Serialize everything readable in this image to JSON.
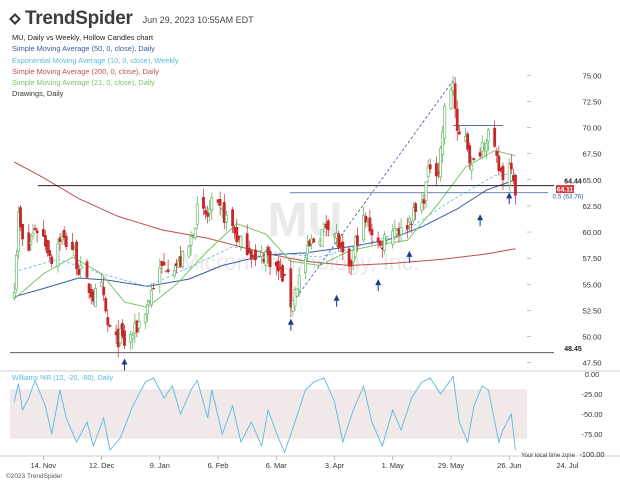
{
  "header": {
    "brand": "TrendSpider",
    "timestamp": "Jun 29, 2023 10:55AM EDT"
  },
  "legend": {
    "title": "MU, Daily vs Weekly, Hollow Candles chart",
    "items": [
      {
        "label": "Simple Moving Average (50, 0, close), Daily",
        "color": "#3a5ba0"
      },
      {
        "label": "Exponential Moving Average (10, 0, close), Weekly",
        "color": "#5bb8e0"
      },
      {
        "label": "Simple Moving Average (200, 0, close), Daily",
        "color": "#c0504d"
      },
      {
        "label": "Simple Moving Average (21, 0, close), Daily",
        "color": "#7ac36a"
      },
      {
        "label": "Drawings, Daily",
        "color": "#333333"
      }
    ]
  },
  "watermark": {
    "ticker": "MU",
    "name": "Micron Technology, Inc."
  },
  "chart_data": [
    {
      "type": "candlestick",
      "title": "MU, Daily vs Weekly, Hollow Candles chart",
      "y_axis": {
        "ticks": [
          47.5,
          50.0,
          52.5,
          55.0,
          57.5,
          60.0,
          62.5,
          65.0,
          67.5,
          70.0,
          72.5,
          75.0
        ],
        "tick_labels": [
          "47.50",
          "50.00",
          "52.50",
          "55.00",
          "57.50",
          "60.00",
          "62.50",
          "65.00",
          "67.50",
          "70.00",
          "72.50",
          "75.00"
        ],
        "range": [
          46.8,
          77.8
        ]
      },
      "x_axis": {
        "ticks": [
          "14. Nov",
          "12. Dec",
          "9. Jan",
          "6. Feb",
          "6. Mar",
          "3. Apr",
          "1. May",
          "29. May",
          "26. Jun",
          "24. Jul"
        ]
      },
      "price_labels": [
        {
          "value": 64.44,
          "label": "64.44",
          "color": "#222222"
        },
        {
          "value": 64.11,
          "label": "64.11",
          "color": "#d33b3b"
        },
        {
          "value": 48.45,
          "label": "48.45",
          "color": "#222222"
        }
      ],
      "fib_label": {
        "value": 63.76,
        "label": "0.5 (63.76)"
      },
      "last_price": 64.11,
      "horizontal_levels": [
        64.44,
        48.45,
        63.76
      ],
      "resistance_top": 70.2,
      "close_path": [
        [
          "2022-10-31",
          55.0
        ],
        [
          "2022-11-02",
          61.5
        ],
        [
          "2022-11-04",
          59.0
        ],
        [
          "2022-11-07",
          58.3
        ],
        [
          "2022-11-10",
          60.5
        ],
        [
          "2022-11-14",
          59.5
        ],
        [
          "2022-11-18",
          57.5
        ],
        [
          "2022-11-22",
          59.5
        ],
        [
          "2022-11-28",
          58.5
        ],
        [
          "2022-12-01",
          56.5
        ],
        [
          "2022-12-05",
          55.0
        ],
        [
          "2022-12-08",
          53.8
        ],
        [
          "2022-12-12",
          54.5
        ],
        [
          "2022-12-15",
          51.0
        ],
        [
          "2022-12-19",
          49.5
        ],
        [
          "2022-12-21",
          50.0
        ],
        [
          "2022-12-23",
          49.3
        ],
        [
          "2022-12-28",
          50.5
        ],
        [
          "2023-01-03",
          53.0
        ],
        [
          "2023-01-06",
          55.0
        ],
        [
          "2023-01-10",
          56.5
        ],
        [
          "2023-01-13",
          57.0
        ],
        [
          "2023-01-18",
          56.8
        ],
        [
          "2023-01-23",
          58.5
        ],
        [
          "2023-01-27",
          62.0
        ],
        [
          "2023-02-01",
          61.5
        ],
        [
          "2023-02-03",
          62.5
        ],
        [
          "2023-02-08",
          61.8
        ],
        [
          "2023-02-13",
          60.5
        ],
        [
          "2023-02-16",
          59.0
        ],
        [
          "2023-02-21",
          58.5
        ],
        [
          "2023-02-24",
          57.0
        ],
        [
          "2023-03-01",
          58.0
        ],
        [
          "2023-03-06",
          56.5
        ],
        [
          "2023-03-09",
          55.8
        ],
        [
          "2023-03-13",
          53.2
        ],
        [
          "2023-03-16",
          55.0
        ],
        [
          "2023-03-20",
          57.5
        ],
        [
          "2023-03-23",
          59.0
        ],
        [
          "2023-03-28",
          60.0
        ],
        [
          "2023-03-31",
          61.0
        ],
        [
          "2023-04-04",
          59.5
        ],
        [
          "2023-04-06",
          58.0
        ],
        [
          "2023-04-10",
          56.0
        ],
        [
          "2023-04-13",
          59.0
        ],
        [
          "2023-04-17",
          61.0
        ],
        [
          "2023-04-20",
          60.5
        ],
        [
          "2023-04-25",
          58.5
        ],
        [
          "2023-04-28",
          60.0
        ],
        [
          "2023-05-03",
          60.5
        ],
        [
          "2023-05-05",
          60.0
        ],
        [
          "2023-05-10",
          61.5
        ],
        [
          "2023-05-15",
          62.5
        ],
        [
          "2023-05-19",
          66.5
        ],
        [
          "2023-05-23",
          66.0
        ],
        [
          "2023-05-26",
          71.5
        ],
        [
          "2023-05-30",
          74.5
        ],
        [
          "2023-06-01",
          69.0
        ],
        [
          "2023-06-05",
          69.5
        ],
        [
          "2023-06-08",
          66.0
        ],
        [
          "2023-06-13",
          68.5
        ],
        [
          "2023-06-16",
          69.5
        ],
        [
          "2023-06-21",
          66.0
        ],
        [
          "2023-06-23",
          65.5
        ],
        [
          "2023-06-27",
          66.8
        ],
        [
          "2023-06-29",
          64.11
        ]
      ],
      "sma21": [
        [
          "2022-10-31",
          53.6
        ],
        [
          "2022-11-14",
          56.0
        ],
        [
          "2022-11-28",
          57.6
        ],
        [
          "2022-12-12",
          56.0
        ],
        [
          "2022-12-23",
          53.3
        ],
        [
          "2023-01-03",
          52.8
        ],
        [
          "2023-01-17",
          55.0
        ],
        [
          "2023-02-01",
          58.2
        ],
        [
          "2023-02-15",
          60.8
        ],
        [
          "2023-03-01",
          59.8
        ],
        [
          "2023-03-13",
          57.2
        ],
        [
          "2023-03-27",
          56.8
        ],
        [
          "2023-04-10",
          58.2
        ],
        [
          "2023-04-24",
          58.8
        ],
        [
          "2023-05-08",
          59.2
        ],
        [
          "2023-05-22",
          62.5
        ],
        [
          "2023-06-05",
          66.2
        ],
        [
          "2023-06-19",
          67.8
        ],
        [
          "2023-06-29",
          67.3
        ]
      ],
      "sma50": [
        [
          "2022-10-31",
          53.8
        ],
        [
          "2022-11-14",
          54.6
        ],
        [
          "2022-12-01",
          55.6
        ],
        [
          "2022-12-15",
          55.4
        ],
        [
          "2023-01-03",
          54.8
        ],
        [
          "2023-01-23",
          55.5
        ],
        [
          "2023-02-08",
          56.8
        ],
        [
          "2023-03-01",
          57.8
        ],
        [
          "2023-03-20",
          58.0
        ],
        [
          "2023-04-10",
          58.6
        ],
        [
          "2023-04-28",
          59.2
        ],
        [
          "2023-05-15",
          60.5
        ],
        [
          "2023-06-01",
          62.2
        ],
        [
          "2023-06-15",
          64.0
        ],
        [
          "2023-06-29",
          65.0
        ]
      ],
      "sma200": [
        [
          "2022-10-31",
          66.7
        ],
        [
          "2022-11-14",
          65.2
        ],
        [
          "2022-12-01",
          63.2
        ],
        [
          "2022-12-20",
          61.5
        ],
        [
          "2023-01-10",
          60.2
        ],
        [
          "2023-02-01",
          59.4
        ],
        [
          "2023-02-28",
          58.0
        ],
        [
          "2023-03-20",
          57.2
        ],
        [
          "2023-04-10",
          56.8
        ],
        [
          "2023-05-01",
          57.0
        ],
        [
          "2023-05-25",
          57.4
        ],
        [
          "2023-06-15",
          57.9
        ],
        [
          "2023-06-29",
          58.4
        ]
      ],
      "ema10_weekly": [
        [
          "2022-10-31",
          56.2
        ],
        [
          "2022-11-21",
          57.4
        ],
        [
          "2022-12-12",
          56.0
        ],
        [
          "2023-01-03",
          54.8
        ],
        [
          "2023-01-23",
          56.6
        ],
        [
          "2023-02-13",
          58.6
        ],
        [
          "2023-03-06",
          58.0
        ],
        [
          "2023-03-27",
          57.6
        ],
        [
          "2023-04-17",
          58.8
        ],
        [
          "2023-05-08",
          60.2
        ],
        [
          "2023-05-29",
          63.0
        ],
        [
          "2023-06-19",
          65.4
        ],
        [
          "2023-06-29",
          65.6
        ]
      ],
      "trendline_from": [
        "2023-03-13",
        53.0
      ],
      "trendline_to": [
        "2023-05-30",
        74.5
      ],
      "markers": [
        {
          "date": "2022-12-23",
          "value": 47.9
        },
        {
          "date": "2023-03-13",
          "value": 51.7
        },
        {
          "date": "2023-04-04",
          "value": 54.0
        },
        {
          "date": "2023-04-24",
          "value": 55.5
        },
        {
          "date": "2023-05-09",
          "value": 58.2
        },
        {
          "date": "2023-06-12",
          "value": 61.7
        },
        {
          "date": "2023-06-26",
          "value": 63.8
        }
      ]
    },
    {
      "type": "line",
      "title": "Williams %R (10, -20, -80), Daily",
      "y_axis": {
        "ticks": [
          0,
          -25,
          -50,
          -75,
          -100
        ],
        "tick_labels": [
          "0.00",
          "-25.00",
          "-50.00",
          "-75.00",
          "-100.00"
        ],
        "range": [
          -100,
          0
        ]
      },
      "bands": [
        -20,
        -80
      ],
      "values": [
        [
          "2022-10-31",
          -35
        ],
        [
          "2022-11-02",
          -12
        ],
        [
          "2022-11-04",
          -45
        ],
        [
          "2022-11-07",
          -30
        ],
        [
          "2022-11-10",
          -8
        ],
        [
          "2022-11-15",
          -40
        ],
        [
          "2022-11-18",
          -75
        ],
        [
          "2022-11-22",
          -20
        ],
        [
          "2022-11-25",
          -55
        ],
        [
          "2022-11-30",
          -85
        ],
        [
          "2022-12-05",
          -60
        ],
        [
          "2022-12-08",
          -90
        ],
        [
          "2022-12-13",
          -55
        ],
        [
          "2022-12-16",
          -95
        ],
        [
          "2022-12-21",
          -80
        ],
        [
          "2022-12-27",
          -40
        ],
        [
          "2023-01-02",
          -10
        ],
        [
          "2023-01-06",
          -5
        ],
        [
          "2023-01-11",
          -30
        ],
        [
          "2023-01-15",
          -15
        ],
        [
          "2023-01-19",
          -50
        ],
        [
          "2023-01-24",
          -20
        ],
        [
          "2023-01-27",
          -8
        ],
        [
          "2023-02-01",
          -55
        ],
        [
          "2023-02-03",
          -20
        ],
        [
          "2023-02-08",
          -75
        ],
        [
          "2023-02-13",
          -40
        ],
        [
          "2023-02-17",
          -85
        ],
        [
          "2023-02-22",
          -60
        ],
        [
          "2023-02-27",
          -90
        ],
        [
          "2023-03-02",
          -45
        ],
        [
          "2023-03-07",
          -80
        ],
        [
          "2023-03-10",
          -98
        ],
        [
          "2023-03-15",
          -60
        ],
        [
          "2023-03-20",
          -20
        ],
        [
          "2023-03-24",
          -10
        ],
        [
          "2023-03-29",
          -5
        ],
        [
          "2023-04-03",
          -35
        ],
        [
          "2023-04-07",
          -85
        ],
        [
          "2023-04-12",
          -45
        ],
        [
          "2023-04-17",
          -15
        ],
        [
          "2023-04-21",
          -60
        ],
        [
          "2023-04-26",
          -90
        ],
        [
          "2023-05-01",
          -45
        ],
        [
          "2023-05-05",
          -70
        ],
        [
          "2023-05-10",
          -30
        ],
        [
          "2023-05-15",
          -10
        ],
        [
          "2023-05-19",
          -5
        ],
        [
          "2023-05-24",
          -25
        ],
        [
          "2023-05-30",
          -3
        ],
        [
          "2023-06-02",
          -60
        ],
        [
          "2023-06-06",
          -85
        ],
        [
          "2023-06-09",
          -40
        ],
        [
          "2023-06-13",
          -15
        ],
        [
          "2023-06-16",
          -20
        ],
        [
          "2023-06-21",
          -85
        ],
        [
          "2023-06-23",
          -70
        ],
        [
          "2023-06-27",
          -50
        ],
        [
          "2023-06-29",
          -95
        ]
      ]
    }
  ],
  "footer": {
    "copyright": "©2023 TrendSpider",
    "timezone_note": "Your local time zone"
  }
}
